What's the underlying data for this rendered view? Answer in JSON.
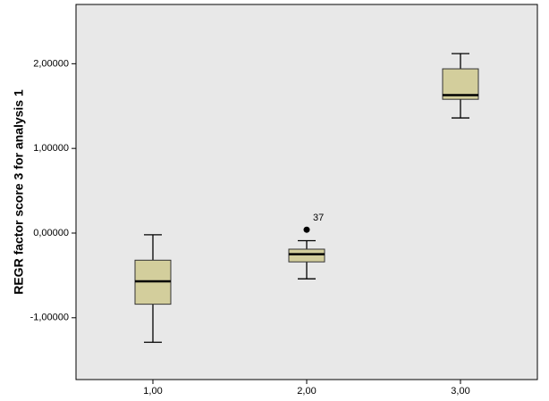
{
  "chart_data": {
    "type": "box",
    "y_label": "REGR factor score   3 for analysis 1",
    "categories": [
      "1,00",
      "2,00",
      "3,00"
    ],
    "boxes": [
      {
        "whislo": -1.29,
        "q1": -0.84,
        "med": -0.57,
        "q3": -0.32,
        "whishi": -0.02,
        "fliers": []
      },
      {
        "whislo": -0.54,
        "q1": -0.34,
        "med": -0.25,
        "q3": -0.19,
        "whishi": -0.09,
        "fliers": [
          {
            "value": 0.04,
            "label": "37"
          }
        ]
      },
      {
        "whislo": 1.36,
        "q1": 1.58,
        "med": 1.63,
        "q3": 1.94,
        "whishi": 2.12,
        "fliers": []
      }
    ],
    "color": "#d3ce9c",
    "ylim": [
      -1.73,
      2.7
    ],
    "yticks": [
      {
        "value": -1,
        "label": "-1,00000"
      },
      {
        "value": 0,
        "label": "0,00000"
      },
      {
        "value": 1,
        "label": "1,00000"
      },
      {
        "value": 2,
        "label": "2,00000"
      }
    ]
  }
}
